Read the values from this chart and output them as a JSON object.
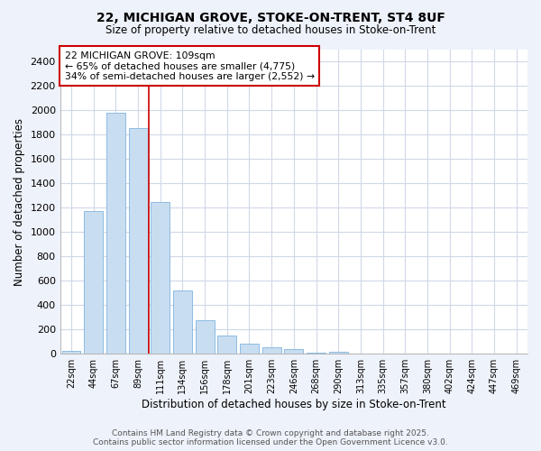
{
  "title1": "22, MICHIGAN GROVE, STOKE-ON-TRENT, ST4 8UF",
  "title2": "Size of property relative to detached houses in Stoke-on-Trent",
  "xlabel": "Distribution of detached houses by size in Stoke-on-Trent",
  "ylabel": "Number of detached properties",
  "categories": [
    "22sqm",
    "44sqm",
    "67sqm",
    "89sqm",
    "111sqm",
    "134sqm",
    "156sqm",
    "178sqm",
    "201sqm",
    "223sqm",
    "246sqm",
    "268sqm",
    "290sqm",
    "313sqm",
    "335sqm",
    "357sqm",
    "380sqm",
    "402sqm",
    "424sqm",
    "447sqm",
    "469sqm"
  ],
  "values": [
    25,
    1175,
    1980,
    1855,
    1245,
    520,
    275,
    150,
    85,
    50,
    40,
    10,
    15,
    5,
    4,
    2,
    2,
    1,
    1,
    1,
    1
  ],
  "bar_color": "#c9ddf0",
  "bar_edge_color": "#7fb4e0",
  "annotation_text_line1": "22 MICHIGAN GROVE: 109sqm",
  "annotation_text_line2": "← 65% of detached houses are smaller (4,775)",
  "annotation_text_line3": "34% of semi-detached houses are larger (2,552) →",
  "annotation_box_color": "#ffffff",
  "annotation_box_edge": "#cc0000",
  "vline_color": "#cc0000",
  "footer1": "Contains HM Land Registry data © Crown copyright and database right 2025.",
  "footer2": "Contains public sector information licensed under the Open Government Licence v3.0.",
  "fig_bg_color": "#eef2fa",
  "plot_bg_color": "#ffffff",
  "grid_color": "#d0d8e8",
  "ylim": [
    0,
    2500
  ],
  "yticks": [
    0,
    200,
    400,
    600,
    800,
    1000,
    1200,
    1400,
    1600,
    1800,
    2000,
    2200,
    2400
  ],
  "vline_x_index": 3.5
}
